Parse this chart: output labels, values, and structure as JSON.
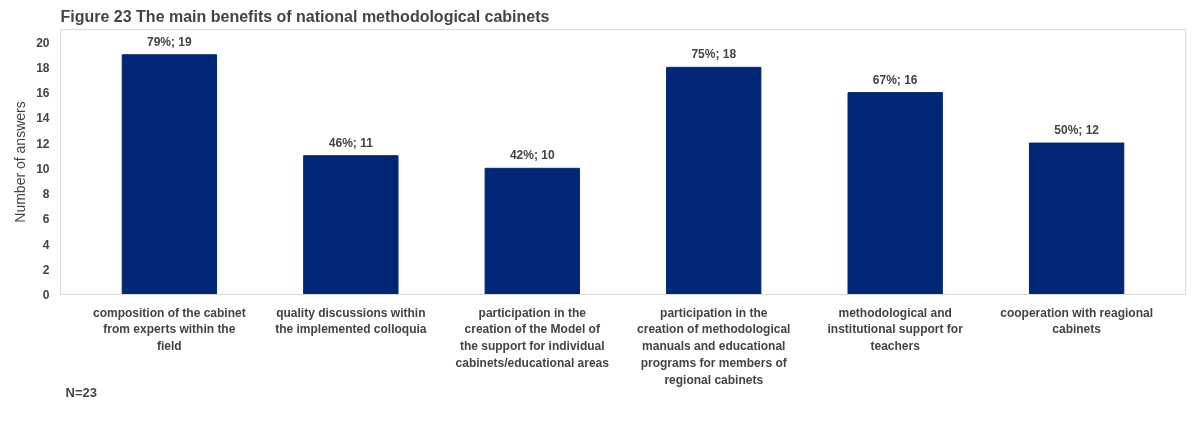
{
  "chart_data": {
    "type": "bar",
    "title": "Figure 23 The main benefits of national methodological cabinets",
    "ylabel": "Number of answers",
    "categories": [
      "composition of the cabinet from experts within the field",
      "quality discussions within the implemented colloquia",
      "participation in the creation of the Model of the support for individual cabinets/educational areas",
      "participation in the creation of methodological manuals and educational programs for members of regional cabinets",
      "methodological and institutional support for teachers",
      "cooperation with reagional cabinets"
    ],
    "values": [
      19,
      11,
      10,
      18,
      16,
      12
    ],
    "value_labels": [
      "79%; 19",
      "46%; 11",
      "42%; 10",
      "75%; 18",
      "67%; 16",
      "50%; 12"
    ],
    "color": "#002776",
    "ylim": [
      0,
      21
    ],
    "yticks": [
      0,
      2,
      4,
      6,
      8,
      10,
      12,
      14,
      16,
      18,
      20
    ],
    "grid": false,
    "annotations": [
      "N=23"
    ]
  }
}
